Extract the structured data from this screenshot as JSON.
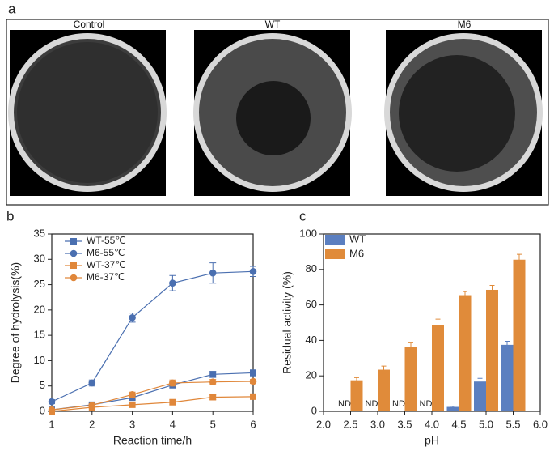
{
  "panel_a": {
    "label": "a",
    "images": [
      "Control",
      "WT",
      "M6"
    ]
  },
  "chart_data": [
    {
      "type": "line",
      "panel_label": "b",
      "xlabel": "Reaction time/h",
      "ylabel": "Degree of hydrolysis(%)",
      "x": [
        1,
        2,
        3,
        4,
        5,
        6
      ],
      "xlim": [
        1,
        6
      ],
      "xticks": [
        1,
        2,
        3,
        4,
        5,
        6
      ],
      "ylim": [
        0,
        35
      ],
      "yticks": [
        0,
        5,
        10,
        15,
        20,
        25,
        30,
        35
      ],
      "series": [
        {
          "name": "WT-55℃",
          "color": "#4a6fb0",
          "marker": "square",
          "values": [
            0.3,
            1.3,
            2.7,
            5.2,
            7.3,
            7.6
          ],
          "errors": [
            0.2,
            0.3,
            0.4,
            0.6,
            0.6,
            0.6
          ]
        },
        {
          "name": "M6-55℃",
          "color": "#4a6fb0",
          "marker": "circle",
          "values": [
            1.9,
            5.6,
            18.5,
            25.3,
            27.3,
            27.6
          ],
          "errors": [
            0.4,
            0.6,
            0.9,
            1.5,
            2.0,
            1.0
          ]
        },
        {
          "name": "WT-37℃",
          "color": "#e0873a",
          "marker": "square",
          "values": [
            0,
            0.8,
            1.3,
            1.8,
            2.8,
            2.9
          ],
          "errors": [
            0.1,
            0.2,
            0.3,
            0.5,
            0.5,
            0.4
          ]
        },
        {
          "name": "M6-37℃",
          "color": "#e0873a",
          "marker": "circle",
          "values": [
            0.3,
            1.2,
            3.3,
            5.6,
            5.8,
            5.9
          ],
          "errors": [
            0.1,
            0.3,
            0.5,
            0.6,
            0.5,
            0.4
          ]
        }
      ]
    },
    {
      "type": "bar",
      "panel_label": "c",
      "xlabel": "pH",
      "ylabel": "Residual activity (%)",
      "x": [
        2.5,
        3,
        3.5,
        4,
        4.5,
        5,
        5.5
      ],
      "xlim": [
        2,
        6
      ],
      "xticks": [
        {
          "value": 2,
          "label": "2.0"
        },
        2.5,
        {
          "value": 3,
          "label": "3.0"
        },
        3.5,
        {
          "value": 4,
          "label": "4.0"
        },
        4.5,
        {
          "value": 5,
          "label": "5.0"
        },
        5.5,
        {
          "value": 6,
          "label": "6.0"
        }
      ],
      "ylim": [
        0,
        100
      ],
      "yticks": [
        0,
        20,
        40,
        60,
        80,
        100
      ],
      "series": [
        {
          "name": "WT",
          "color": "#5b7fc0",
          "values": [
            null,
            null,
            null,
            null,
            2.5,
            16.8,
            37.5
          ],
          "errors": [
            null,
            null,
            null,
            null,
            0.4,
            1.8,
            2
          ],
          "value_labels": [
            "ND",
            "ND",
            "ND",
            "ND",
            null,
            null,
            null
          ]
        },
        {
          "name": "M6",
          "color": "#e08b3a",
          "values": [
            17.5,
            23.5,
            36.5,
            48.5,
            65.5,
            68.5,
            85.5
          ],
          "errors": [
            1.5,
            2,
            2.5,
            3.5,
            2,
            2.5,
            3
          ]
        }
      ]
    }
  ]
}
